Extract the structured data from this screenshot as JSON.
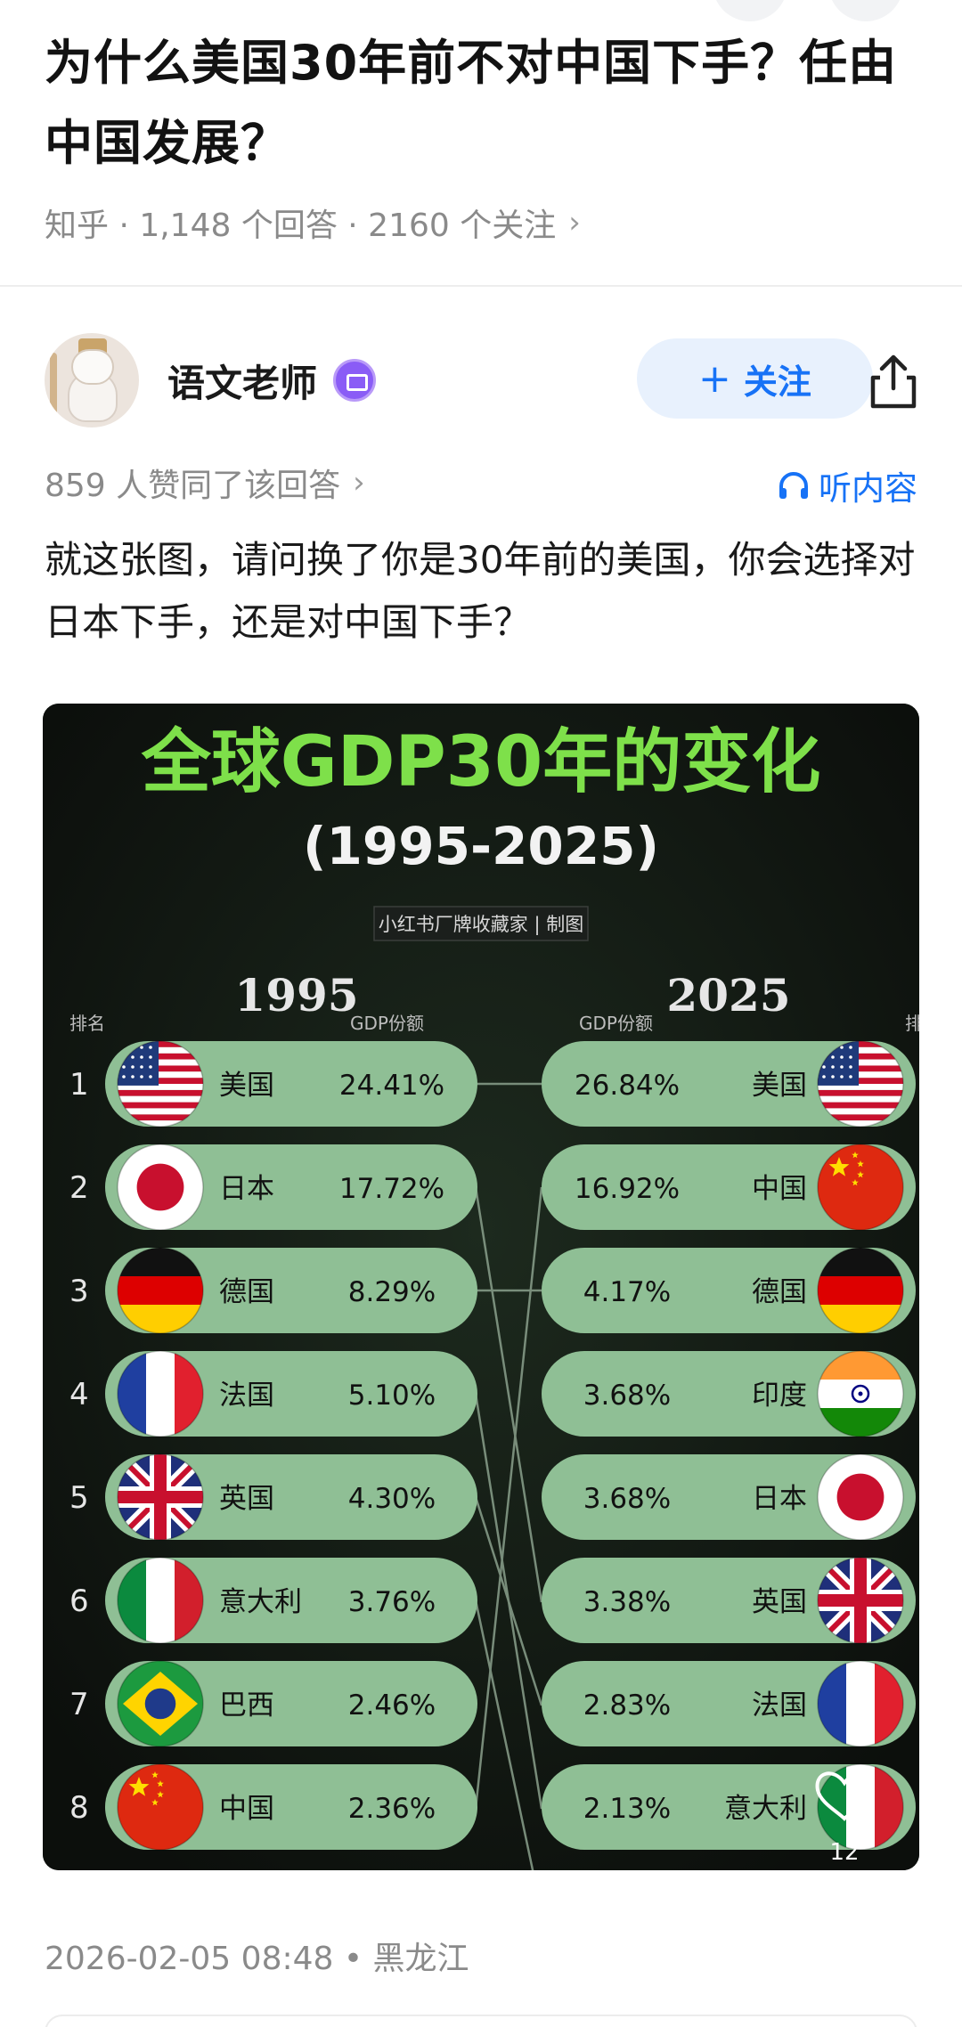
{
  "question": {
    "title": "为什么美国30年前不对中国下手？任由中国发展？",
    "meta": "知乎 · 1,148 个回答 · 2160 个关注",
    "chevron": "›"
  },
  "author": {
    "name": "语文老师",
    "follow_label": "关注",
    "follow_prefix": "+"
  },
  "answer": {
    "agree_text": "859 人赞同了该回答",
    "listen_label": "听内容",
    "body": "就这张图，请问换了你是30年前的美国，你会选择对日本下手，还是对中国下手？"
  },
  "infographic": {
    "title": "全球GDP30年的变化",
    "subtitle": "(1995-2025)",
    "credit": "小红书厂牌收藏家 | 制图",
    "year_left": "1995",
    "year_right": "2025",
    "rank_label": "排名",
    "share_label": "GDP份额",
    "left": [
      {
        "rank": "1",
        "name": "美国",
        "share": "24.41%",
        "flag": "us-flag"
      },
      {
        "rank": "2",
        "name": "日本",
        "share": "17.72%",
        "flag": "japan-flag"
      },
      {
        "rank": "3",
        "name": "德国",
        "share": "8.29%",
        "flag": "germany-flag"
      },
      {
        "rank": "4",
        "name": "法国",
        "share": "5.10%",
        "flag": "france-flag"
      },
      {
        "rank": "5",
        "name": "英国",
        "share": "4.30%",
        "flag": "uk-flag"
      },
      {
        "rank": "6",
        "name": "意大利",
        "share": "3.76%",
        "flag": "italy-flag"
      },
      {
        "rank": "7",
        "name": "巴西",
        "share": "2.46%",
        "flag": "brazil-flag"
      },
      {
        "rank": "8",
        "name": "中国",
        "share": "2.36%",
        "flag": "china-flag"
      }
    ],
    "right": [
      {
        "name": "美国",
        "share": "26.84%",
        "flag": "us-flag"
      },
      {
        "name": "中国",
        "share": "16.92%",
        "flag": "china-flag"
      },
      {
        "name": "德国",
        "share": "4.17%",
        "flag": "germany-flag"
      },
      {
        "name": "印度",
        "share": "3.68%",
        "flag": "india-flag"
      },
      {
        "name": "日本",
        "share": "3.68%",
        "flag": "japan-flag"
      },
      {
        "name": "英国",
        "share": "3.38%",
        "flag": "uk-flag"
      },
      {
        "name": "法国",
        "share": "2.83%",
        "flag": "france-flag"
      },
      {
        "name": "意大利",
        "share": "2.13%",
        "flag": "italy-flag"
      }
    ],
    "like_count": "12",
    "colors": {
      "title_green": "#7ee04a",
      "pill": "#8fbf95",
      "background": "#0f1310"
    }
  },
  "footer": {
    "date_location": "2026-02-05 08:48 • 黑龙江"
  }
}
